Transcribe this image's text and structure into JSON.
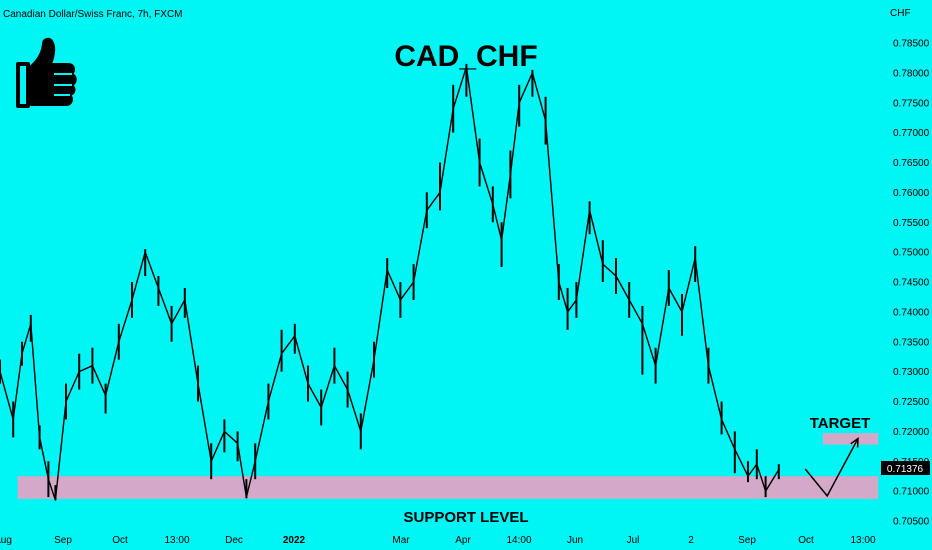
{
  "header": {
    "symbol_info": "Canadian Dollar/Swiss Franc, 7h, FXCM",
    "main_title": "CAD_CHF",
    "currency_label": "CHF"
  },
  "icon": {
    "name": "thumbs-up-icon"
  },
  "colors": {
    "background": "#00f5f5",
    "candles": "#000000",
    "zone": "#d4a8c8",
    "price_badge_bg": "#000000",
    "price_badge_fg": "#ffffff"
  },
  "annotations": {
    "support_label": "SUPPORT LEVEL",
    "target_label": "TARGET"
  },
  "price_badge": {
    "value": "0.71376"
  },
  "chart_data": {
    "type": "line",
    "title": "CAD_CHF",
    "y_axis": {
      "unit": "CHF",
      "ticks": [
        0.705,
        0.71,
        0.715,
        0.72,
        0.725,
        0.73,
        0.735,
        0.74,
        0.745,
        0.75,
        0.755,
        0.76,
        0.765,
        0.77,
        0.775,
        0.78,
        0.785
      ],
      "tick_labels": [
        "0.70500",
        "0.71000",
        "0.71500",
        "0.72000",
        "0.72500",
        "0.73000",
        "0.73500",
        "0.74000",
        "0.74500",
        "0.75000",
        "0.75500",
        "0.76000",
        "0.76500",
        "0.77000",
        "0.77500",
        "0.78000",
        "0.78500"
      ],
      "ylim": [
        0.7045,
        0.7885
      ]
    },
    "x_axis": {
      "tick_labels": [
        "Aug",
        "Sep",
        "Oct",
        "13:00",
        "Dec",
        "2022",
        "Mar",
        "Apr",
        "14:00",
        "Jun",
        "Jul",
        "2",
        "Sep",
        "Oct",
        "13:00"
      ],
      "xlim": [
        0,
        100
      ]
    },
    "series": [
      {
        "x": [
          0,
          1.5,
          2.5,
          3.5,
          4.5,
          5.5,
          6.3,
          7.5,
          9,
          10.5,
          12,
          13.5,
          15,
          16.5,
          18,
          19.5,
          21,
          22.5,
          24,
          25.5,
          27,
          28,
          29,
          30.5,
          32,
          33.5,
          35,
          36.5,
          38,
          39.5,
          41,
          42.5,
          44,
          45.5,
          47,
          48.5,
          50,
          51.5,
          53,
          54.5,
          56,
          57,
          58,
          59,
          60.5,
          62,
          63.5,
          64.5,
          65.5,
          67,
          68.5,
          70,
          71.5,
          73,
          74.5,
          76,
          77.5,
          79,
          80.5,
          82,
          83.5,
          85,
          86,
          87,
          88.5
        ],
        "close": [
          0.73,
          0.722,
          0.733,
          0.738,
          0.719,
          0.712,
          0.7085,
          0.725,
          0.73,
          0.731,
          0.726,
          0.735,
          0.742,
          0.75,
          0.744,
          0.738,
          0.742,
          0.728,
          0.715,
          0.72,
          0.718,
          0.709,
          0.715,
          0.725,
          0.733,
          0.736,
          0.728,
          0.724,
          0.731,
          0.727,
          0.72,
          0.732,
          0.747,
          0.742,
          0.745,
          0.757,
          0.76,
          0.774,
          0.781,
          0.765,
          0.758,
          0.752,
          0.763,
          0.775,
          0.78,
          0.772,
          0.745,
          0.74,
          0.742,
          0.757,
          0.748,
          0.746,
          0.742,
          0.738,
          0.731,
          0.744,
          0.74,
          0.749,
          0.731,
          0.722,
          0.717,
          0.7125,
          0.7145,
          0.71,
          0.7136
        ],
        "high": [
          0.732,
          0.725,
          0.735,
          0.7395,
          0.721,
          0.715,
          0.711,
          0.728,
          0.733,
          0.734,
          0.728,
          0.738,
          0.745,
          0.7505,
          0.746,
          0.741,
          0.744,
          0.731,
          0.718,
          0.722,
          0.72,
          0.712,
          0.718,
          0.728,
          0.737,
          0.738,
          0.731,
          0.727,
          0.734,
          0.73,
          0.723,
          0.735,
          0.749,
          0.745,
          0.748,
          0.76,
          0.765,
          0.778,
          0.7815,
          0.769,
          0.761,
          0.755,
          0.767,
          0.778,
          0.7805,
          0.776,
          0.748,
          0.744,
          0.745,
          0.7585,
          0.752,
          0.749,
          0.745,
          0.741,
          0.734,
          0.747,
          0.743,
          0.751,
          0.734,
          0.725,
          0.72,
          0.715,
          0.717,
          0.7125,
          0.7145
        ],
        "low": [
          0.728,
          0.719,
          0.731,
          0.735,
          0.717,
          0.709,
          0.7085,
          0.722,
          0.727,
          0.728,
          0.723,
          0.732,
          0.739,
          0.746,
          0.741,
          0.735,
          0.739,
          0.725,
          0.712,
          0.7165,
          0.715,
          0.7088,
          0.712,
          0.722,
          0.73,
          0.733,
          0.725,
          0.721,
          0.728,
          0.724,
          0.717,
          0.729,
          0.744,
          0.739,
          0.742,
          0.754,
          0.757,
          0.77,
          0.776,
          0.761,
          0.755,
          0.7475,
          0.759,
          0.771,
          0.776,
          0.768,
          0.742,
          0.737,
          0.739,
          0.753,
          0.745,
          0.743,
          0.739,
          0.7295,
          0.728,
          0.741,
          0.736,
          0.745,
          0.728,
          0.7195,
          0.713,
          0.7115,
          0.712,
          0.709,
          0.712
        ]
      }
    ],
    "zones": [
      {
        "name": "SUPPORT LEVEL",
        "y_min": 0.7087,
        "y_max": 0.7125,
        "x_start": 2,
        "x_end": 99.8
      },
      {
        "name": "TARGET",
        "y_min": 0.7178,
        "y_max": 0.7197,
        "x_start": 93.5,
        "x_end": 99.8
      }
    ],
    "projection": {
      "x": [
        91.5,
        94,
        97.5
      ],
      "y": [
        0.7137,
        0.7092,
        0.7188
      ]
    },
    "grid": false,
    "legend": "none"
  }
}
